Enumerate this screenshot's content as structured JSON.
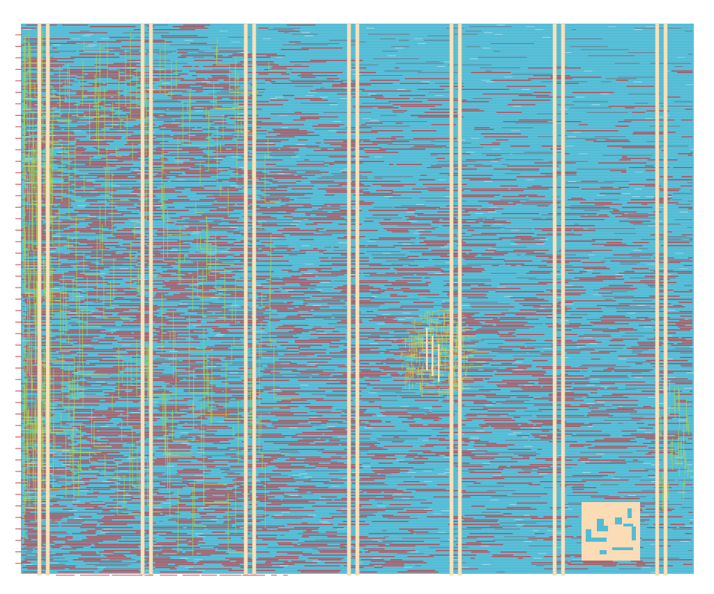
{
  "view": {
    "description_visible_text": ""
  },
  "colors": {
    "background": "#ffffff",
    "core_fill": "#52bcd6",
    "core_row_stripe": "#9ad6e0",
    "metal_red": "#d2343a",
    "metal_dark": "#7a5a6a",
    "metal_green": "#a8d24a",
    "metal_yellow": "#d6d24a",
    "power_stripe": "#f8e2bc",
    "power_stripe_edge": "#e8cfa4",
    "macro_fill": "#fbdcb4",
    "pin_red": "#d2343a"
  },
  "layers": [
    {
      "name": "core-cells"
    },
    {
      "name": "horizontal-metal-routing"
    },
    {
      "name": "vertical-metal-routing"
    },
    {
      "name": "power-straps"
    },
    {
      "name": "macro-block"
    },
    {
      "name": "io-pins"
    }
  ]
}
